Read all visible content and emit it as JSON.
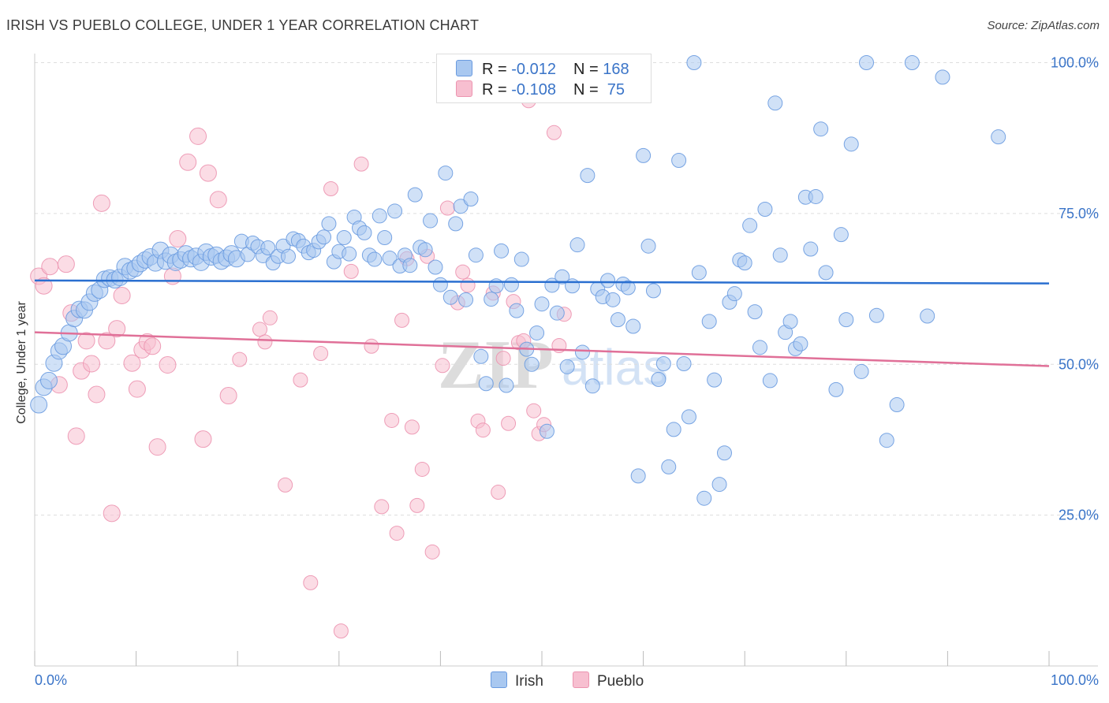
{
  "header": {
    "title": "IRISH VS PUEBLO COLLEGE, UNDER 1 YEAR CORRELATION CHART",
    "source": "Source: ZipAtlas.com"
  },
  "colors": {
    "irish_fill": "#a9c8f0",
    "irish_stroke": "#6a9be0",
    "irish_line": "#2a6fd0",
    "pueblo_fill": "#f7bfd0",
    "pueblo_stroke": "#ec94b0",
    "pueblo_line": "#e07098",
    "tick_label": "#3a74c8"
  },
  "legend": {
    "irish": {
      "r_label": "R = ",
      "r_value": "-0.012",
      "n_label": "N = ",
      "n_value": "168"
    },
    "pueblo": {
      "r_label": "R = ",
      "r_value": "-0.108",
      "n_label": "N = ",
      "n_value": " 75"
    }
  },
  "bottom_legend": {
    "irish": "Irish",
    "pueblo": "Pueblo"
  },
  "watermark": {
    "zip": "ZIP",
    "atlas": "atlas"
  },
  "chart_data": {
    "type": "scatter",
    "title": "IRISH VS PUEBLO COLLEGE, UNDER 1 YEAR CORRELATION CHART",
    "xlabel": "",
    "ylabel": "College, Under 1 year",
    "xlim": [
      0,
      100
    ],
    "ylim": [
      0,
      104
    ],
    "x_tick_labels": [
      "0.0%",
      "100.0%"
    ],
    "y_ticks": [
      100,
      75,
      50,
      25
    ],
    "y_tick_labels": [
      "100.0%",
      "75.0%",
      "50.0%",
      "25.0%"
    ],
    "grid": "horizontal dashed",
    "legend_position": "top-center",
    "series": [
      {
        "name": "Irish",
        "trend": {
          "x": [
            0,
            100
          ],
          "y": [
            63.9,
            63.4
          ]
        },
        "points": [
          [
            0.4,
            43.3
          ],
          [
            0.9,
            46.2
          ],
          [
            1.4,
            47.3
          ],
          [
            1.9,
            50.2
          ],
          [
            2.4,
            52.2
          ],
          [
            2.8,
            53.0
          ],
          [
            3.4,
            55.2
          ],
          [
            3.9,
            57.6
          ],
          [
            4.4,
            59.1
          ],
          [
            4.9,
            59.0
          ],
          [
            5.4,
            60.3
          ],
          [
            5.9,
            61.8
          ],
          [
            6.4,
            62.3
          ],
          [
            6.9,
            64.1
          ],
          [
            7.4,
            64.3
          ],
          [
            7.9,
            64.0
          ],
          [
            8.4,
            64.4
          ],
          [
            8.9,
            66.2
          ],
          [
            9.4,
            65.5
          ],
          [
            9.9,
            65.9
          ],
          [
            10.4,
            66.7
          ],
          [
            10.9,
            67.3
          ],
          [
            11.4,
            67.8
          ],
          [
            11.9,
            66.8
          ],
          [
            12.4,
            68.9
          ],
          [
            12.9,
            67.1
          ],
          [
            13.4,
            68.1
          ],
          [
            13.9,
            66.9
          ],
          [
            14.4,
            67.3
          ],
          [
            14.9,
            68.3
          ],
          [
            15.4,
            67.5
          ],
          [
            15.9,
            67.9
          ],
          [
            16.4,
            66.9
          ],
          [
            16.9,
            68.6
          ],
          [
            17.4,
            67.8
          ],
          [
            17.9,
            68.1
          ],
          [
            18.4,
            67.1
          ],
          [
            18.9,
            67.6
          ],
          [
            19.4,
            68.3
          ],
          [
            19.9,
            67.5
          ],
          [
            20.4,
            70.4
          ],
          [
            21.0,
            68.2
          ],
          [
            21.5,
            70.1
          ],
          [
            22.0,
            69.5
          ],
          [
            22.5,
            68.0
          ],
          [
            23.0,
            69.3
          ],
          [
            23.5,
            66.8
          ],
          [
            24.0,
            67.9
          ],
          [
            24.5,
            69.6
          ],
          [
            25.0,
            67.9
          ],
          [
            25.5,
            70.8
          ],
          [
            26.0,
            70.5
          ],
          [
            26.5,
            69.6
          ],
          [
            27.0,
            68.5
          ],
          [
            27.5,
            68.9
          ],
          [
            28.0,
            70.3
          ],
          [
            28.5,
            71.1
          ],
          [
            29.0,
            73.3
          ],
          [
            29.5,
            67.0
          ],
          [
            30.0,
            68.7
          ],
          [
            30.5,
            71.0
          ],
          [
            31.0,
            68.3
          ],
          [
            31.5,
            74.4
          ],
          [
            32.0,
            72.6
          ],
          [
            32.5,
            71.8
          ],
          [
            33.0,
            68.1
          ],
          [
            33.5,
            67.4
          ],
          [
            34.0,
            74.6
          ],
          [
            34.5,
            71.0
          ],
          [
            35.0,
            67.6
          ],
          [
            35.5,
            75.4
          ],
          [
            36.0,
            66.3
          ],
          [
            36.5,
            68.1
          ],
          [
            37.0,
            66.4
          ],
          [
            37.5,
            78.1
          ],
          [
            38.0,
            69.4
          ],
          [
            38.5,
            69.0
          ],
          [
            39.0,
            73.8
          ],
          [
            39.5,
            66.1
          ],
          [
            40.0,
            63.2
          ],
          [
            40.5,
            81.7
          ],
          [
            41.0,
            61.1
          ],
          [
            41.5,
            73.3
          ],
          [
            42.0,
            76.2
          ],
          [
            42.5,
            60.7
          ],
          [
            43.0,
            77.4
          ],
          [
            43.5,
            68.1
          ],
          [
            44.0,
            51.3
          ],
          [
            44.5,
            46.8
          ],
          [
            45.0,
            60.8
          ],
          [
            45.5,
            63.0
          ],
          [
            46.0,
            68.8
          ],
          [
            46.5,
            46.5
          ],
          [
            47.0,
            63.2
          ],
          [
            47.5,
            58.9
          ],
          [
            48.0,
            67.4
          ],
          [
            48.5,
            52.5
          ],
          [
            49.0,
            50.0
          ],
          [
            49.5,
            55.2
          ],
          [
            50.0,
            60.0
          ],
          [
            50.5,
            38.9
          ],
          [
            51.0,
            63.1
          ],
          [
            51.5,
            58.5
          ],
          [
            52.0,
            64.5
          ],
          [
            52.5,
            49.6
          ],
          [
            53.0,
            63.0
          ],
          [
            53.5,
            69.8
          ],
          [
            54.0,
            52.0
          ],
          [
            54.5,
            81.3
          ],
          [
            55.0,
            46.4
          ],
          [
            55.5,
            62.5
          ],
          [
            56.0,
            61.2
          ],
          [
            56.5,
            63.9
          ],
          [
            57.0,
            60.7
          ],
          [
            57.5,
            57.4
          ],
          [
            58.0,
            63.3
          ],
          [
            58.5,
            62.7
          ],
          [
            59.0,
            56.3
          ],
          [
            59.5,
            31.5
          ],
          [
            60.0,
            84.6
          ],
          [
            60.5,
            69.6
          ],
          [
            61.0,
            62.2
          ],
          [
            61.5,
            47.5
          ],
          [
            62.0,
            50.1
          ],
          [
            62.5,
            33.0
          ],
          [
            63.0,
            39.2
          ],
          [
            63.5,
            83.8
          ],
          [
            64.0,
            50.1
          ],
          [
            64.5,
            41.3
          ],
          [
            65.0,
            100.0
          ],
          [
            65.5,
            65.2
          ],
          [
            66.0,
            27.8
          ],
          [
            66.5,
            57.1
          ],
          [
            67.0,
            47.4
          ],
          [
            67.5,
            30.1
          ],
          [
            68.0,
            35.3
          ],
          [
            68.5,
            60.3
          ],
          [
            69.0,
            61.7
          ],
          [
            69.5,
            67.3
          ],
          [
            70.0,
            66.8
          ],
          [
            70.5,
            73.0
          ],
          [
            71.0,
            58.7
          ],
          [
            71.5,
            52.8
          ],
          [
            72.0,
            75.7
          ],
          [
            72.5,
            47.3
          ],
          [
            73.0,
            93.3
          ],
          [
            73.5,
            68.1
          ],
          [
            74.0,
            55.3
          ],
          [
            74.5,
            57.1
          ],
          [
            75.0,
            52.6
          ],
          [
            75.5,
            53.4
          ],
          [
            76.0,
            77.7
          ],
          [
            76.5,
            69.1
          ],
          [
            77.0,
            77.8
          ],
          [
            77.5,
            89.0
          ],
          [
            78.0,
            65.2
          ],
          [
            79.0,
            45.8
          ],
          [
            79.5,
            71.5
          ],
          [
            80.0,
            57.4
          ],
          [
            80.5,
            86.5
          ],
          [
            81.5,
            48.8
          ],
          [
            82.0,
            100.0
          ],
          [
            83.0,
            58.1
          ],
          [
            84.0,
            37.4
          ],
          [
            85.0,
            43.3
          ],
          [
            86.5,
            100.0
          ],
          [
            88.0,
            58.0
          ],
          [
            89.5,
            97.6
          ],
          [
            95.0,
            87.7
          ]
        ]
      },
      {
        "name": "Pueblo",
        "trend": {
          "x": [
            0,
            100
          ],
          "y": [
            55.3,
            49.7
          ]
        },
        "points": [
          [
            0.4,
            64.6
          ],
          [
            0.9,
            63.0
          ],
          [
            1.5,
            66.2
          ],
          [
            2.4,
            46.6
          ],
          [
            3.1,
            66.6
          ],
          [
            3.6,
            58.5
          ],
          [
            4.1,
            38.1
          ],
          [
            4.6,
            48.9
          ],
          [
            5.1,
            53.9
          ],
          [
            5.6,
            50.1
          ],
          [
            6.1,
            45.0
          ],
          [
            6.6,
            76.7
          ],
          [
            7.1,
            53.9
          ],
          [
            7.6,
            25.3
          ],
          [
            8.1,
            55.9
          ],
          [
            8.6,
            61.4
          ],
          [
            9.6,
            50.2
          ],
          [
            10.1,
            45.9
          ],
          [
            10.6,
            52.4
          ],
          [
            11.1,
            53.7
          ],
          [
            11.6,
            53.0
          ],
          [
            12.1,
            36.3
          ],
          [
            13.1,
            49.9
          ],
          [
            13.6,
            64.6
          ],
          [
            14.1,
            70.8
          ],
          [
            15.1,
            83.5
          ],
          [
            16.1,
            87.8
          ],
          [
            16.6,
            37.6
          ],
          [
            17.1,
            81.7
          ],
          [
            18.1,
            77.3
          ],
          [
            19.1,
            44.8
          ],
          [
            20.2,
            50.8
          ],
          [
            22.2,
            55.8
          ],
          [
            22.7,
            53.7
          ],
          [
            23.2,
            57.7
          ],
          [
            24.7,
            30.0
          ],
          [
            26.2,
            47.4
          ],
          [
            27.2,
            13.8
          ],
          [
            28.2,
            51.8
          ],
          [
            29.2,
            79.1
          ],
          [
            30.2,
            5.8
          ],
          [
            31.2,
            65.4
          ],
          [
            32.2,
            83.2
          ],
          [
            33.2,
            53.0
          ],
          [
            34.2,
            26.4
          ],
          [
            35.2,
            40.7
          ],
          [
            35.7,
            22.0
          ],
          [
            36.2,
            57.3
          ],
          [
            36.7,
            67.5
          ],
          [
            37.2,
            39.6
          ],
          [
            37.7,
            26.6
          ],
          [
            38.2,
            32.6
          ],
          [
            38.7,
            67.9
          ],
          [
            39.2,
            18.9
          ],
          [
            40.2,
            49.8
          ],
          [
            40.7,
            75.9
          ],
          [
            41.7,
            60.2
          ],
          [
            42.2,
            65.3
          ],
          [
            42.7,
            63.1
          ],
          [
            43.7,
            40.6
          ],
          [
            44.2,
            39.1
          ],
          [
            45.2,
            61.8
          ],
          [
            45.7,
            28.8
          ],
          [
            46.2,
            51.0
          ],
          [
            46.7,
            40.2
          ],
          [
            47.2,
            60.4
          ],
          [
            47.7,
            53.6
          ],
          [
            48.2,
            53.9
          ],
          [
            48.7,
            93.7
          ],
          [
            49.2,
            42.3
          ],
          [
            49.7,
            38.5
          ],
          [
            50.2,
            40.0
          ],
          [
            51.2,
            88.4
          ],
          [
            51.7,
            53.1
          ],
          [
            52.2,
            58.3
          ]
        ]
      }
    ]
  }
}
